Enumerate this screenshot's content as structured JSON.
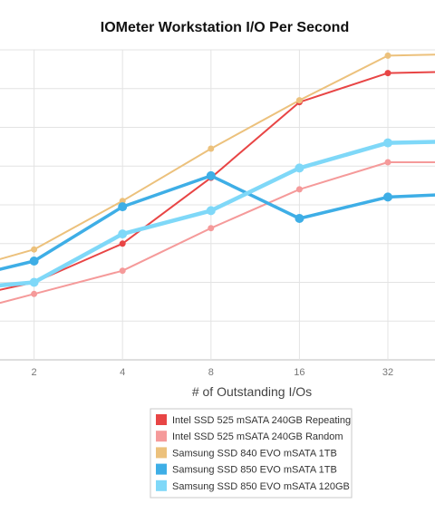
{
  "chart_data": {
    "type": "line",
    "title": "IOMeter Workstation I/O Per Second",
    "xlabel": "# of Outstanding I/Os",
    "ylabel": "",
    "x": [
      1,
      2,
      4,
      8,
      16,
      32,
      64
    ],
    "x_tick_labels": [
      "2",
      "4",
      "8",
      "16",
      "32"
    ],
    "y_tick_values": [
      0,
      1000,
      2000,
      3000,
      4000,
      5000,
      6000,
      7000,
      8000
    ],
    "ylim": [
      0,
      8000
    ],
    "grid": true,
    "legend_position": "bottom-center",
    "series": [
      {
        "name": "Intel SSD 525 mSATA 240GB Repeating",
        "color": "#e84545",
        "values": [
          1500,
          2000,
          3000,
          4700,
          6650,
          7400,
          7450
        ]
      },
      {
        "name": "Intel SSD 525 mSATA 240GB Random",
        "color": "#f59a9a",
        "values": [
          1100,
          1700,
          2300,
          3400,
          4400,
          5100,
          5100
        ]
      },
      {
        "name": "Samsung SSD 840 EVO mSATA 1TB",
        "color": "#ecc17c",
        "values": [
          2200,
          2850,
          4100,
          5450,
          6700,
          7850,
          7900
        ]
      },
      {
        "name": "Samsung SSD 850 EVO mSATA 1TB",
        "color": "#3eaee6",
        "values": [
          2000,
          2550,
          3950,
          4750,
          3650,
          4200,
          4300
        ]
      },
      {
        "name": "Samsung SSD 850 EVO mSATA 120GB",
        "color": "#7fd8f8",
        "values": [
          1800,
          2000,
          3250,
          3850,
          4950,
          5600,
          5650
        ]
      }
    ]
  }
}
